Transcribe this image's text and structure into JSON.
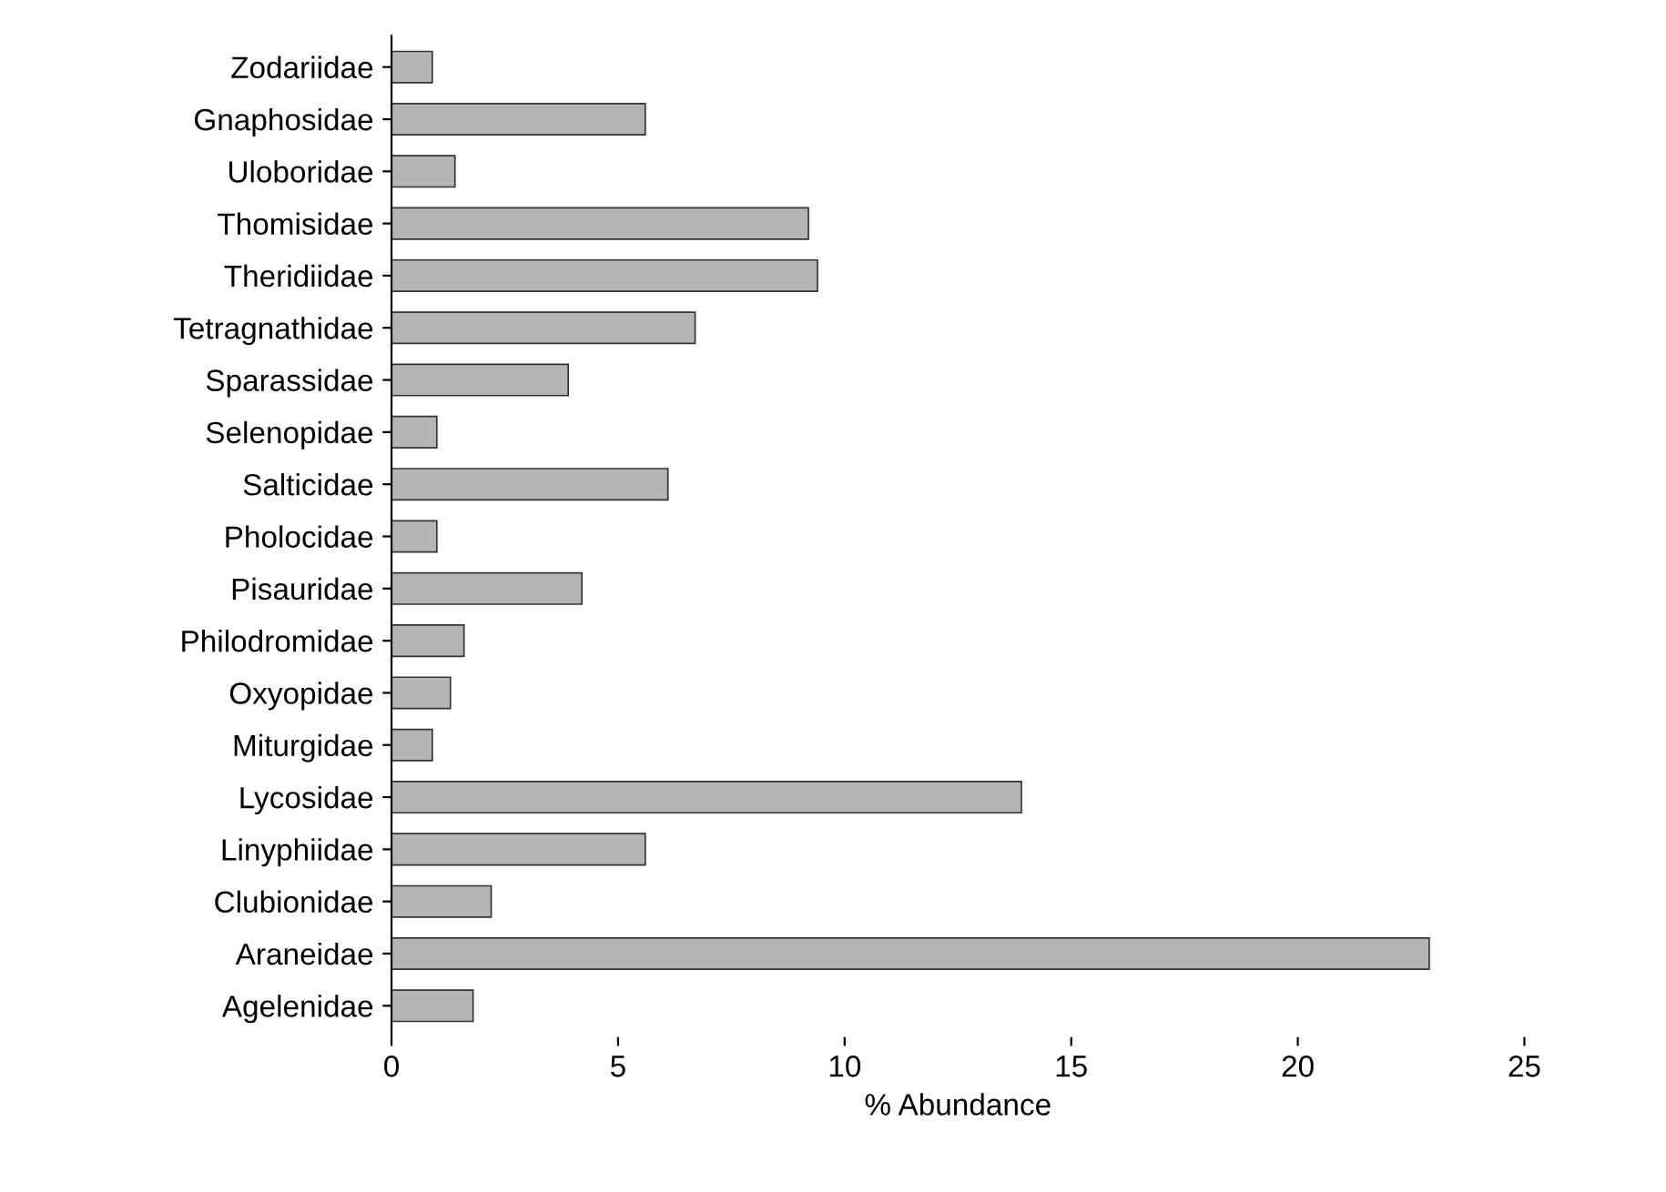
{
  "chart_data": {
    "type": "bar",
    "orientation": "horizontal",
    "xlabel": "% Abundance",
    "categories": [
      "Zodariidae",
      "Gnaphosidae",
      "Uloboridae",
      "Thomisidae",
      "Theridiidae",
      "Tetragnathidae",
      "Sparassidae",
      "Selenopidae",
      "Salticidae",
      "Pholocidae",
      "Pisauridae",
      "Philodromidae",
      "Oxyopidae",
      "Miturgidae",
      "Lycosidae",
      "Linyphiidae",
      "Clubionidae",
      "Araneidae",
      "Agelenidae"
    ],
    "values": [
      0.9,
      5.6,
      1.4,
      9.2,
      9.4,
      6.7,
      3.9,
      1.0,
      6.1,
      1.0,
      4.2,
      1.6,
      1.3,
      0.9,
      13.9,
      5.6,
      2.2,
      22.9,
      1.8
    ],
    "color": "#b5b5b5",
    "xlim": [
      0,
      25
    ],
    "xticks": [
      0,
      5,
      10,
      15,
      20,
      25
    ],
    "grid": false,
    "legend": false
  }
}
